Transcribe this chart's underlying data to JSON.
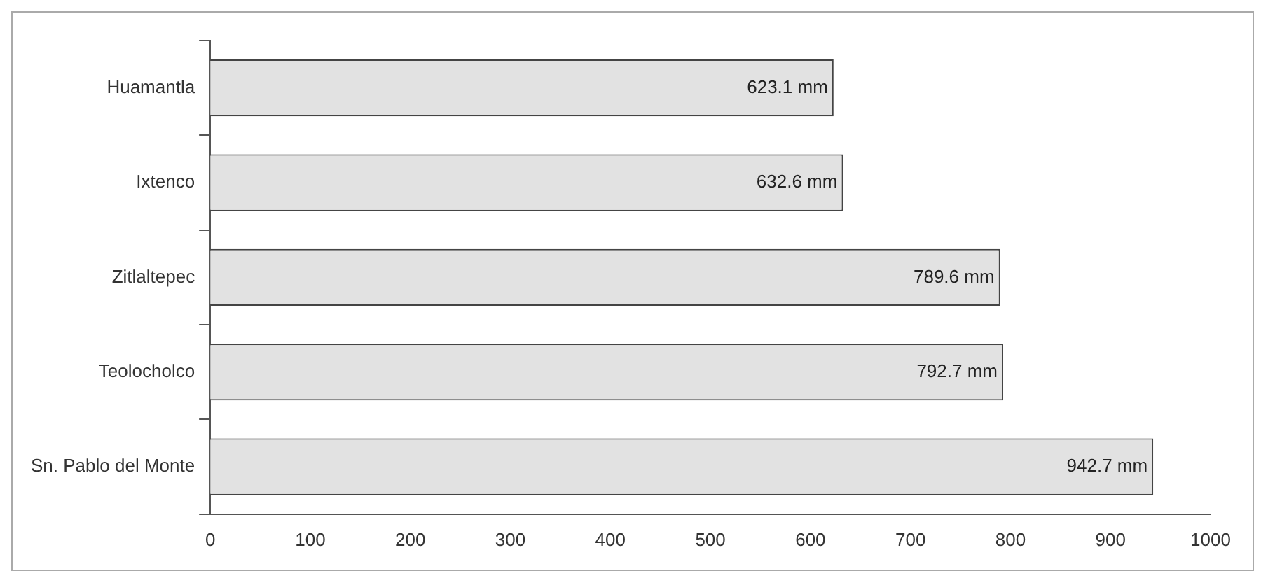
{
  "chart_data": {
    "type": "bar",
    "orientation": "horizontal",
    "categories": [
      "Huamantla",
      "Ixtenco",
      "Zitlaltepec",
      "Teolocholco",
      "Sn. Pablo del Monte"
    ],
    "values": [
      623.1,
      632.6,
      789.6,
      792.7,
      942.7
    ],
    "value_labels": [
      "623.1 mm",
      "632.6 mm",
      "789.6 mm",
      "792.7 mm",
      "942.7 mm"
    ],
    "color": "#e2e2e2",
    "xlim": [
      0,
      1000
    ],
    "xticks": [
      0,
      100,
      200,
      300,
      400,
      500,
      600,
      700,
      800,
      900,
      1000
    ],
    "grid": false,
    "legend": false
  }
}
